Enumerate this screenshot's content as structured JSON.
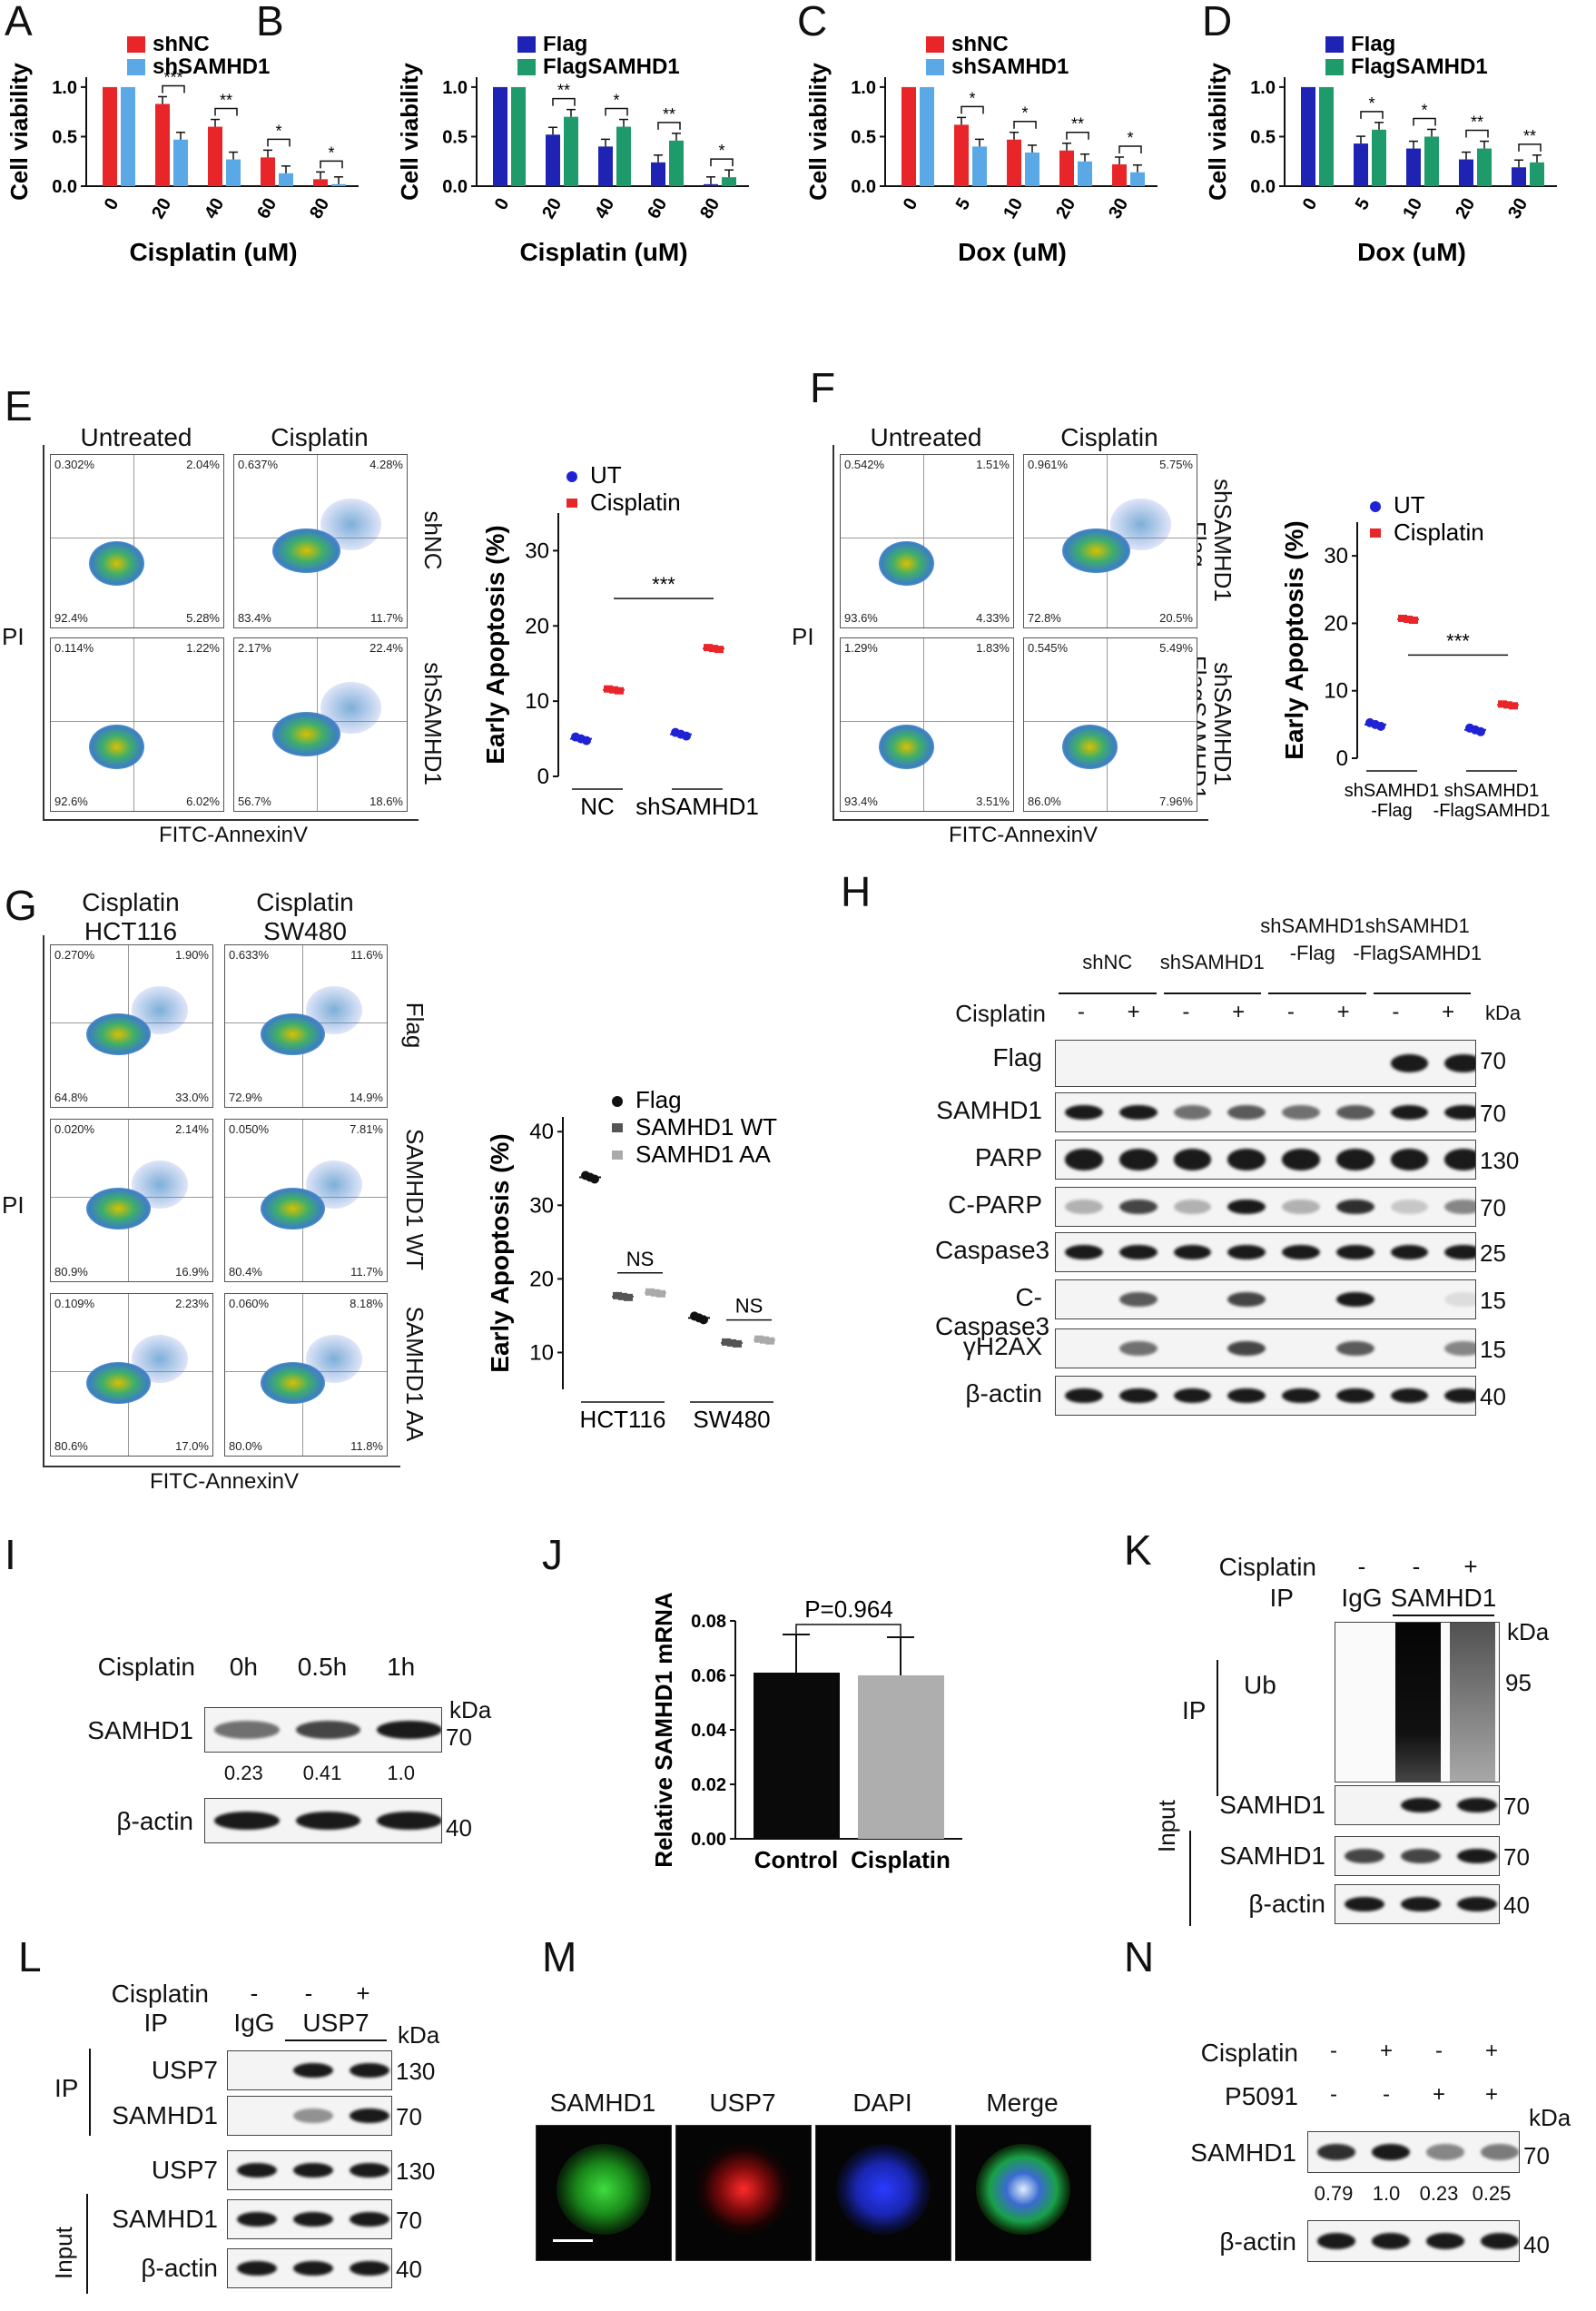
{
  "panels": {
    "A": "A",
    "B": "B",
    "C": "C",
    "D": "D",
    "E": "E",
    "F": "F",
    "G": "G",
    "H": "H",
    "I": "I",
    "J": "J",
    "K": "K",
    "L": "L",
    "M": "M",
    "N": "N"
  },
  "chart_data": [
    {
      "id": "A",
      "type": "bar",
      "ylabel": "Cell viability",
      "xlabel": "Cisplatin (uM)",
      "categories": [
        "0",
        "20",
        "40",
        "60",
        "80"
      ],
      "ylim": [
        0,
        1.2
      ],
      "yticks": [
        "0.0",
        "0.5",
        "1.0"
      ],
      "series": [
        {
          "name": "shNC",
          "color": "#e8262a",
          "values": [
            1.0,
            0.83,
            0.6,
            0.29,
            0.07
          ]
        },
        {
          "name": "shSAMHD1",
          "color": "#5aa9e6",
          "values": [
            1.0,
            0.47,
            0.27,
            0.13,
            0.02
          ]
        }
      ],
      "sig": [
        "",
        "***",
        "**",
        "*",
        "*"
      ]
    },
    {
      "id": "B",
      "type": "bar",
      "ylabel": "Cell viability",
      "xlabel": "Cisplatin (uM)",
      "categories": [
        "0",
        "20",
        "40",
        "60",
        "80"
      ],
      "ylim": [
        0,
        1.2
      ],
      "yticks": [
        "0.0",
        "0.5",
        "1.0"
      ],
      "series": [
        {
          "name": "Flag",
          "color": "#1f23b4",
          "values": [
            1.0,
            0.52,
            0.4,
            0.24,
            0.02
          ]
        },
        {
          "name": "FlagSAMHD1",
          "color": "#1f9a6a",
          "values": [
            1.0,
            0.7,
            0.6,
            0.46,
            0.09
          ]
        }
      ],
      "sig": [
        "",
        "**",
        "*",
        "**",
        "*"
      ]
    },
    {
      "id": "C",
      "type": "bar",
      "ylabel": "Cell viability",
      "xlabel": "Dox (uM)",
      "categories": [
        "0",
        "5",
        "10",
        "20",
        "30"
      ],
      "ylim": [
        0,
        1.2
      ],
      "yticks": [
        "0.0",
        "0.5",
        "1.0"
      ],
      "series": [
        {
          "name": "shNC",
          "color": "#e8262a",
          "values": [
            1.0,
            0.62,
            0.47,
            0.36,
            0.22
          ]
        },
        {
          "name": "shSAMHD1",
          "color": "#5aa9e6",
          "values": [
            1.0,
            0.4,
            0.34,
            0.25,
            0.14
          ]
        }
      ],
      "sig": [
        "",
        "*",
        "*",
        "**",
        "*"
      ]
    },
    {
      "id": "D",
      "type": "bar",
      "ylabel": "Cell viability",
      "xlabel": "Dox (uM)",
      "categories": [
        "0",
        "5",
        "10",
        "20",
        "30"
      ],
      "ylim": [
        0,
        1.2
      ],
      "yticks": [
        "0.0",
        "0.5",
        "1.0"
      ],
      "series": [
        {
          "name": "Flag",
          "color": "#1f23b4",
          "values": [
            1.0,
            0.43,
            0.38,
            0.27,
            0.19
          ]
        },
        {
          "name": "FlagSAMHD1",
          "color": "#1f9a6a",
          "values": [
            1.0,
            0.57,
            0.5,
            0.38,
            0.24
          ]
        }
      ],
      "sig": [
        "",
        "*",
        "*",
        "**",
        "**"
      ]
    },
    {
      "id": "E",
      "type": "scatter",
      "ylabel": "Early Apoptosis (%)",
      "ylim": [
        0,
        35
      ],
      "yticks": [
        "0",
        "10",
        "20",
        "30"
      ],
      "groups": [
        "NC",
        "shSAMHD1"
      ],
      "sig": "***",
      "series": [
        {
          "name": "UT",
          "color": "#1f23d4",
          "values": [
            5.0,
            5.6
          ]
        },
        {
          "name": "Cisplatin",
          "color": "#e8262a",
          "values": [
            11.5,
            17.0
          ]
        }
      ]
    },
    {
      "id": "F",
      "type": "scatter",
      "ylabel": "Early Apoptosis (%)",
      "ylim": [
        0,
        35
      ],
      "yticks": [
        "0",
        "10",
        "20",
        "30"
      ],
      "groups": [
        "shSAMHD1\n-Flag",
        "shSAMHD1\n-FlagSAMHD1"
      ],
      "sig": "***",
      "series": [
        {
          "name": "UT",
          "color": "#1f23d4",
          "values": [
            5.0,
            4.2
          ]
        },
        {
          "name": "Cisplatin",
          "color": "#e8262a",
          "values": [
            20.6,
            7.9
          ]
        }
      ]
    },
    {
      "id": "G",
      "type": "scatter",
      "ylabel": "Early Apoptosis (%)",
      "ylim": [
        5,
        42
      ],
      "yticks": [
        "10",
        "20",
        "30",
        "40"
      ],
      "groups": [
        "HCT116",
        "SW480"
      ],
      "sig": [
        "NS",
        "NS"
      ],
      "series": [
        {
          "name": "Flag",
          "color": "#111111",
          "values": [
            33.8,
            14.7
          ]
        },
        {
          "name": "SAMHD1 WT",
          "color": "#555555",
          "values": [
            17.6,
            11.3
          ]
        },
        {
          "name": "SAMHD1 AA",
          "color": "#aaaaaa",
          "values": [
            18.1,
            11.7
          ]
        }
      ]
    },
    {
      "id": "J",
      "type": "bar",
      "ylabel": "Relative SAMHD1 mRNA",
      "ylim": [
        0,
        0.08
      ],
      "yticks": [
        "0.00",
        "0.02",
        "0.04",
        "0.06",
        "0.08"
      ],
      "categories": [
        "Control",
        "Cisplatin"
      ],
      "series": [
        {
          "name": "",
          "values": [
            0.061,
            0.06
          ]
        }
      ],
      "colors": [
        "#0a0a0a",
        "#aeaeae"
      ],
      "pvalue": "P=0.964"
    }
  ],
  "flow": {
    "E": {
      "cols": [
        "Untreated",
        "Cisplatin"
      ],
      "rows": [
        "shNC",
        "shSAMHD1"
      ],
      "xaxis": "FITC-AnnexinV",
      "yaxis": "PI",
      "plots": [
        [
          "0.302%",
          "2.04%",
          "92.4%",
          "5.28%"
        ],
        [
          "0.637%",
          "4.28%",
          "83.4%",
          "11.7%"
        ],
        [
          "0.114%",
          "1.22%",
          "92.6%",
          "6.02%"
        ],
        [
          "2.17%",
          "22.4%",
          "56.7%",
          "18.6%"
        ]
      ]
    },
    "F": {
      "cols": [
        "Untreated",
        "Cisplatin"
      ],
      "rows": [
        "shSAMHD1\n-Flag",
        "shSAMHD1\n-FlagSAMHD1"
      ],
      "xaxis": "FITC-AnnexinV",
      "yaxis": "PI",
      "plots": [
        [
          "0.542%",
          "1.51%",
          "93.6%",
          "4.33%"
        ],
        [
          "0.961%",
          "5.75%",
          "72.8%",
          "20.5%"
        ],
        [
          "1.29%",
          "1.83%",
          "93.4%",
          "3.51%"
        ],
        [
          "0.545%",
          "5.49%",
          "86.0%",
          "7.96%"
        ]
      ]
    },
    "G": {
      "cols": [
        "Cisplatin\nHCT116",
        "Cisplatin\nSW480"
      ],
      "rows": [
        "Flag",
        "SAMHD1 WT",
        "SAMHD1 AA"
      ],
      "xaxis": "FITC-AnnexinV",
      "yaxis": "PI",
      "plots": [
        [
          "0.270%",
          "1.90%",
          "64.8%",
          "33.0%"
        ],
        [
          "0.633%",
          "11.6%",
          "72.9%",
          "14.9%"
        ],
        [
          "0.020%",
          "2.14%",
          "80.9%",
          "16.9%"
        ],
        [
          "0.050%",
          "7.81%",
          "80.4%",
          "11.7%"
        ],
        [
          "0.109%",
          "2.23%",
          "80.6%",
          "17.0%"
        ],
        [
          "0.060%",
          "8.18%",
          "80.0%",
          "11.8%"
        ]
      ]
    }
  },
  "H": {
    "groups": [
      "shNC",
      "shSAMHD1",
      "shSAMHD1\n-Flag",
      "shSAMHD1\n-FlagSAMHD1"
    ],
    "treat_label": "Cisplatin",
    "kda": "kDa",
    "signs": [
      "-",
      "+",
      "-",
      "+",
      "-",
      "+",
      "-",
      "+"
    ],
    "rows": [
      {
        "name": "Flag",
        "mw": "70"
      },
      {
        "name": "SAMHD1",
        "mw": "70"
      },
      {
        "name": "PARP",
        "mw": "130"
      },
      {
        "name": "C-PARP",
        "mw": "70"
      },
      {
        "name": "Caspase3",
        "mw": "25"
      },
      {
        "name": "C-Caspase3",
        "mw": "15"
      },
      {
        "name": "γH2AX",
        "mw": "15"
      },
      {
        "name": "β-actin",
        "mw": "40"
      }
    ]
  },
  "I": {
    "treat_label": "Cisplatin",
    "times": [
      "0h",
      "0.5h",
      "1h"
    ],
    "kda": "kDa",
    "rows": [
      {
        "name": "SAMHD1",
        "mw": "70"
      },
      {
        "name": "β-actin",
        "mw": "40"
      }
    ],
    "quant": [
      "0.23",
      "0.41",
      "1.0"
    ]
  },
  "K": {
    "treat_label": "Cisplatin",
    "ip_label": "IP",
    "signs": [
      "-",
      "-",
      "+"
    ],
    "ip_igg": "IgG",
    "ip_target": "SAMHD1",
    "kda": "kDa",
    "ip_side": "IP",
    "input_side": "Input",
    "ub": "Ub",
    "ub_mw": "95",
    "ip_samhd1": "SAMHD1",
    "ip_samhd1_mw": "70",
    "in_rows": [
      {
        "name": "SAMHD1",
        "mw": "70"
      },
      {
        "name": "β-actin",
        "mw": "40"
      }
    ]
  },
  "L": {
    "treat_label": "Cisplatin",
    "ip_label": "IP",
    "signs": [
      "-",
      "-",
      "+"
    ],
    "ip_igg": "IgG",
    "ip_target": "USP7",
    "kda": "kDa",
    "ip_side": "IP",
    "input_side": "Input",
    "ip_rows": [
      {
        "name": "USP7",
        "mw": "130"
      },
      {
        "name": "SAMHD1",
        "mw": "70"
      }
    ],
    "in_rows": [
      {
        "name": "USP7",
        "mw": "130"
      },
      {
        "name": "SAMHD1",
        "mw": "70"
      },
      {
        "name": "β-actin",
        "mw": "40"
      }
    ]
  },
  "M": {
    "labels": [
      "SAMHD1",
      "USP7",
      "DAPI",
      "Merge"
    ]
  },
  "N": {
    "treat1": "Cisplatin",
    "treat2": "P5091",
    "signs1": [
      "-",
      "+",
      "-",
      "+"
    ],
    "signs2": [
      "-",
      "-",
      "+",
      "+"
    ],
    "kda": "kDa",
    "rows": [
      {
        "name": "SAMHD1",
        "mw": "70"
      },
      {
        "name": "β-actin",
        "mw": "40"
      }
    ],
    "quant": [
      "0.79",
      "1.0",
      "0.23",
      "0.25"
    ]
  }
}
